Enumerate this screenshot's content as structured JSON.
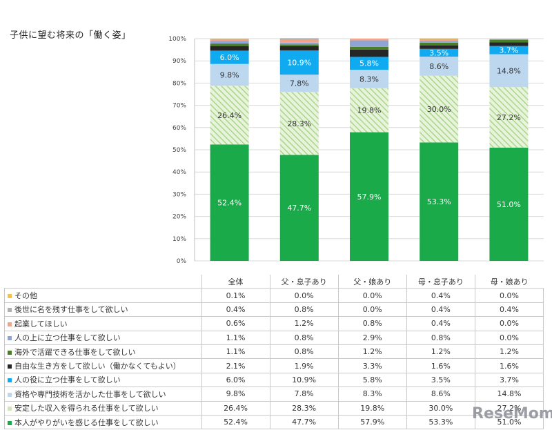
{
  "chart_data": {
    "type": "bar",
    "stacked": true,
    "title": "子供に望む将来の「働く姿」",
    "categories": [
      "全体",
      "父・息子あり",
      "父・娘あり",
      "母・息子あり",
      "母・娘あり"
    ],
    "yticks": [
      "0%",
      "10%",
      "20%",
      "30%",
      "40%",
      "50%",
      "60%",
      "70%",
      "80%",
      "90%",
      "100%"
    ],
    "ylim": [
      0,
      100
    ],
    "series": [
      {
        "name": "本人がやりがいを感じる仕事をして欲しい",
        "color": "#1aaa4a",
        "pattern": "solid",
        "values": [
          52.4,
          47.7,
          57.9,
          53.3,
          51.0
        ],
        "labels": [
          "52.4%",
          "47.7%",
          "57.9%",
          "53.3%",
          "51.0%"
        ],
        "show_in_bar": true
      },
      {
        "name": "安定した収入を得られる仕事をして欲しい",
        "color": "#a9d68a",
        "pattern": "hatch",
        "values": [
          26.4,
          28.3,
          19.8,
          30.0,
          27.2
        ],
        "labels": [
          "26.4%",
          "28.3%",
          "19.8%",
          "30.0%",
          "27.2%"
        ],
        "show_in_bar": true
      },
      {
        "name": "資格や専門技術を活かした仕事をして欲しい",
        "color": "#bdd7ee",
        "pattern": "solid",
        "values": [
          9.8,
          7.8,
          8.3,
          8.6,
          14.8
        ],
        "labels": [
          "9.8%",
          "7.8%",
          "8.3%",
          "8.6%",
          "14.8%"
        ],
        "show_in_bar": true
      },
      {
        "name": "人の役に立つ仕事をして欲しい",
        "color": "#10aaf0",
        "pattern": "solid",
        "values": [
          6.0,
          10.9,
          5.8,
          3.5,
          3.7
        ],
        "labels": [
          "6.0%",
          "10.9%",
          "5.8%",
          "3.5%",
          "3.7%"
        ],
        "show_in_bar": true
      },
      {
        "name": "自由な生き方をして欲しい（働かなくてもよい）",
        "color": "#262626",
        "pattern": "solid",
        "values": [
          2.1,
          1.9,
          3.3,
          1.6,
          1.6
        ],
        "labels": [
          "2.1%",
          "1.9%",
          "3.3%",
          "1.6%",
          "1.6%"
        ],
        "show_in_bar": false
      },
      {
        "name": "海外で活躍できる仕事をして欲しい",
        "color": "#4a7f2a",
        "pattern": "solid",
        "values": [
          1.1,
          0.8,
          1.2,
          1.2,
          1.2
        ],
        "labels": [
          "1.1%",
          "0.8%",
          "1.2%",
          "1.2%",
          "1.2%"
        ],
        "show_in_bar": false
      },
      {
        "name": "人の上に立つ仕事をして欲しい",
        "color": "#8fa4d4",
        "pattern": "solid",
        "values": [
          1.1,
          0.8,
          2.9,
          0.8,
          0.0
        ],
        "labels": [
          "1.1%",
          "0.8%",
          "2.9%",
          "0.8%",
          "0.0%"
        ],
        "show_in_bar": false
      },
      {
        "name": "起業してほしい",
        "color": "#f0a488",
        "pattern": "solid",
        "values": [
          0.6,
          1.2,
          0.8,
          0.4,
          0.0
        ],
        "labels": [
          "0.6%",
          "1.2%",
          "0.8%",
          "0.4%",
          "0.0%"
        ],
        "show_in_bar": false
      },
      {
        "name": "後世に名を残す仕事をして欲しい",
        "color": "#b0b0b0",
        "pattern": "solid",
        "values": [
          0.4,
          0.8,
          0.0,
          0.4,
          0.4
        ],
        "labels": [
          "0.4%",
          "0.8%",
          "0.0%",
          "0.4%",
          "0.4%"
        ],
        "show_in_bar": false
      },
      {
        "name": "その他",
        "color": "#f5c34a",
        "pattern": "solid",
        "values": [
          0.1,
          0.0,
          0.0,
          0.4,
          0.0
        ],
        "labels": [
          "0.1%",
          "0.0%",
          "0.0%",
          "0.4%",
          "0.0%"
        ],
        "show_in_bar": false
      }
    ]
  },
  "watermark": "ReseMom"
}
